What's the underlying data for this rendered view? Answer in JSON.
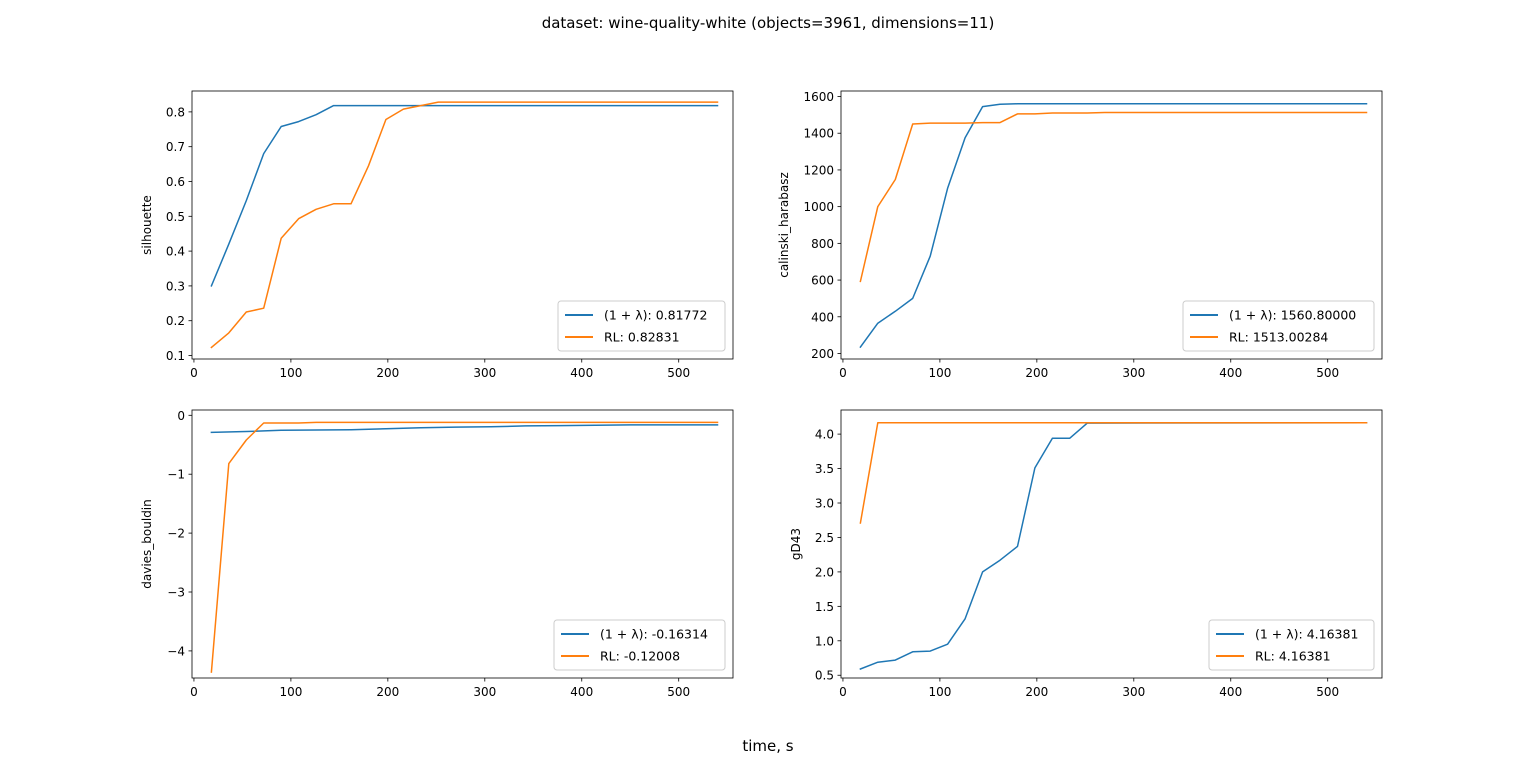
{
  "figure": {
    "suptitle": "dataset: wine-quality-white (objects=3961, dimensions=11)",
    "xlabel": "time, s"
  },
  "colors": {
    "one_plus_lambda": "#1f77b4",
    "rl": "#ff7f0e"
  },
  "chart_data": [
    {
      "type": "line",
      "ylabel": "silhouette",
      "xlim": [
        -2,
        556
      ],
      "ylim": [
        0.09,
        0.86
      ],
      "xticks": [
        0,
        100,
        200,
        300,
        400,
        500
      ],
      "yticks": [
        0.1,
        0.2,
        0.3,
        0.4,
        0.5,
        0.6,
        0.7,
        0.8
      ],
      "ytick_labels": [
        "0.1",
        "0.2",
        "0.3",
        "0.4",
        "0.5",
        "0.6",
        "0.7",
        "0.8"
      ],
      "legend_position": "lower right",
      "series": [
        {
          "name": "(1 + λ): 0.81772",
          "color": "#1f77b4",
          "x": [
            18,
            36,
            54,
            72,
            90,
            108,
            126,
            144,
            162,
            180,
            198,
            216,
            234,
            252,
            270,
            540
          ],
          "y": [
            0.3,
            0.42,
            0.545,
            0.68,
            0.758,
            0.772,
            0.792,
            0.818,
            0.818,
            0.818,
            0.818,
            0.818,
            0.818,
            0.818,
            0.818,
            0.818
          ]
        },
        {
          "name": "RL: 0.82831",
          "color": "#ff7f0e",
          "x": [
            18,
            36,
            54,
            72,
            90,
            108,
            126,
            144,
            162,
            180,
            198,
            216,
            234,
            252,
            270,
            540
          ],
          "y": [
            0.123,
            0.165,
            0.225,
            0.236,
            0.437,
            0.493,
            0.52,
            0.536,
            0.536,
            0.645,
            0.778,
            0.808,
            0.818,
            0.828,
            0.828,
            0.828
          ]
        }
      ]
    },
    {
      "type": "line",
      "ylabel": "calinski_harabasz",
      "xlim": [
        -2,
        556
      ],
      "ylim": [
        170,
        1630
      ],
      "xticks": [
        0,
        100,
        200,
        300,
        400,
        500
      ],
      "yticks": [
        200,
        400,
        600,
        800,
        1000,
        1200,
        1400,
        1600
      ],
      "ytick_labels": [
        "200",
        "400",
        "600",
        "800",
        "1000",
        "1200",
        "1400",
        "1600"
      ],
      "legend_position": "lower right",
      "series": [
        {
          "name": "(1 + λ): 1560.80000",
          "color": "#1f77b4",
          "x": [
            18,
            36,
            54,
            72,
            90,
            108,
            126,
            144,
            162,
            180,
            198,
            540
          ],
          "y": [
            235,
            365,
            430,
            500,
            730,
            1100,
            1375,
            1545,
            1558,
            1560,
            1561,
            1561
          ]
        },
        {
          "name": "RL: 1513.00284",
          "color": "#ff7f0e",
          "x": [
            18,
            36,
            54,
            72,
            90,
            108,
            126,
            144,
            162,
            180,
            198,
            216,
            234,
            252,
            270,
            540
          ],
          "y": [
            593,
            1000,
            1148,
            1450,
            1455,
            1455,
            1455,
            1458,
            1458,
            1505,
            1505,
            1510,
            1510,
            1510,
            1513,
            1513
          ]
        }
      ]
    },
    {
      "type": "line",
      "ylabel": "davies_bouldin",
      "xlim": [
        -2,
        556
      ],
      "ylim": [
        -4.46,
        0.09
      ],
      "xticks": [
        0,
        100,
        200,
        300,
        400,
        500
      ],
      "yticks": [
        -4,
        -3,
        -2,
        -1,
        0
      ],
      "ytick_labels": [
        "−4",
        "−3",
        "−2",
        "−1",
        "0"
      ],
      "legend_position": "lower right",
      "series": [
        {
          "name": "(1 + λ): -0.16314",
          "color": "#1f77b4",
          "x": [
            18,
            54,
            90,
            126,
            162,
            198,
            234,
            270,
            306,
            342,
            378,
            414,
            450,
            540
          ],
          "y": [
            -0.29,
            -0.275,
            -0.255,
            -0.25,
            -0.245,
            -0.23,
            -0.21,
            -0.2,
            -0.195,
            -0.18,
            -0.175,
            -0.17,
            -0.163,
            -0.163
          ]
        },
        {
          "name": "RL: -0.12008",
          "color": "#ff7f0e",
          "x": [
            18,
            36,
            54,
            72,
            108,
            126,
            540
          ],
          "y": [
            -4.36,
            -0.82,
            -0.42,
            -0.13,
            -0.13,
            -0.12,
            -0.12
          ]
        }
      ]
    },
    {
      "type": "line",
      "ylabel": "gD43",
      "xlim": [
        -2,
        556
      ],
      "ylim": [
        0.46,
        4.35
      ],
      "xticks": [
        0,
        100,
        200,
        300,
        400,
        500
      ],
      "yticks": [
        0.5,
        1.0,
        1.5,
        2.0,
        2.5,
        3.0,
        3.5,
        4.0
      ],
      "ytick_labels": [
        "0.5",
        "1.0",
        "1.5",
        "2.0",
        "2.5",
        "3.0",
        "3.5",
        "4.0"
      ],
      "legend_position": "lower right",
      "series": [
        {
          "name": "(1 + λ): 4.16381",
          "color": "#1f77b4",
          "x": [
            18,
            36,
            54,
            72,
            90,
            108,
            126,
            144,
            162,
            180,
            198,
            216,
            234,
            252,
            540
          ],
          "y": [
            0.59,
            0.69,
            0.72,
            0.84,
            0.85,
            0.95,
            1.32,
            2.0,
            2.17,
            2.37,
            3.51,
            3.94,
            3.94,
            4.16,
            4.164
          ]
        },
        {
          "name": "RL: 4.16381",
          "color": "#ff7f0e",
          "x": [
            18,
            36,
            540
          ],
          "y": [
            2.71,
            4.164,
            4.164
          ]
        }
      ]
    }
  ]
}
